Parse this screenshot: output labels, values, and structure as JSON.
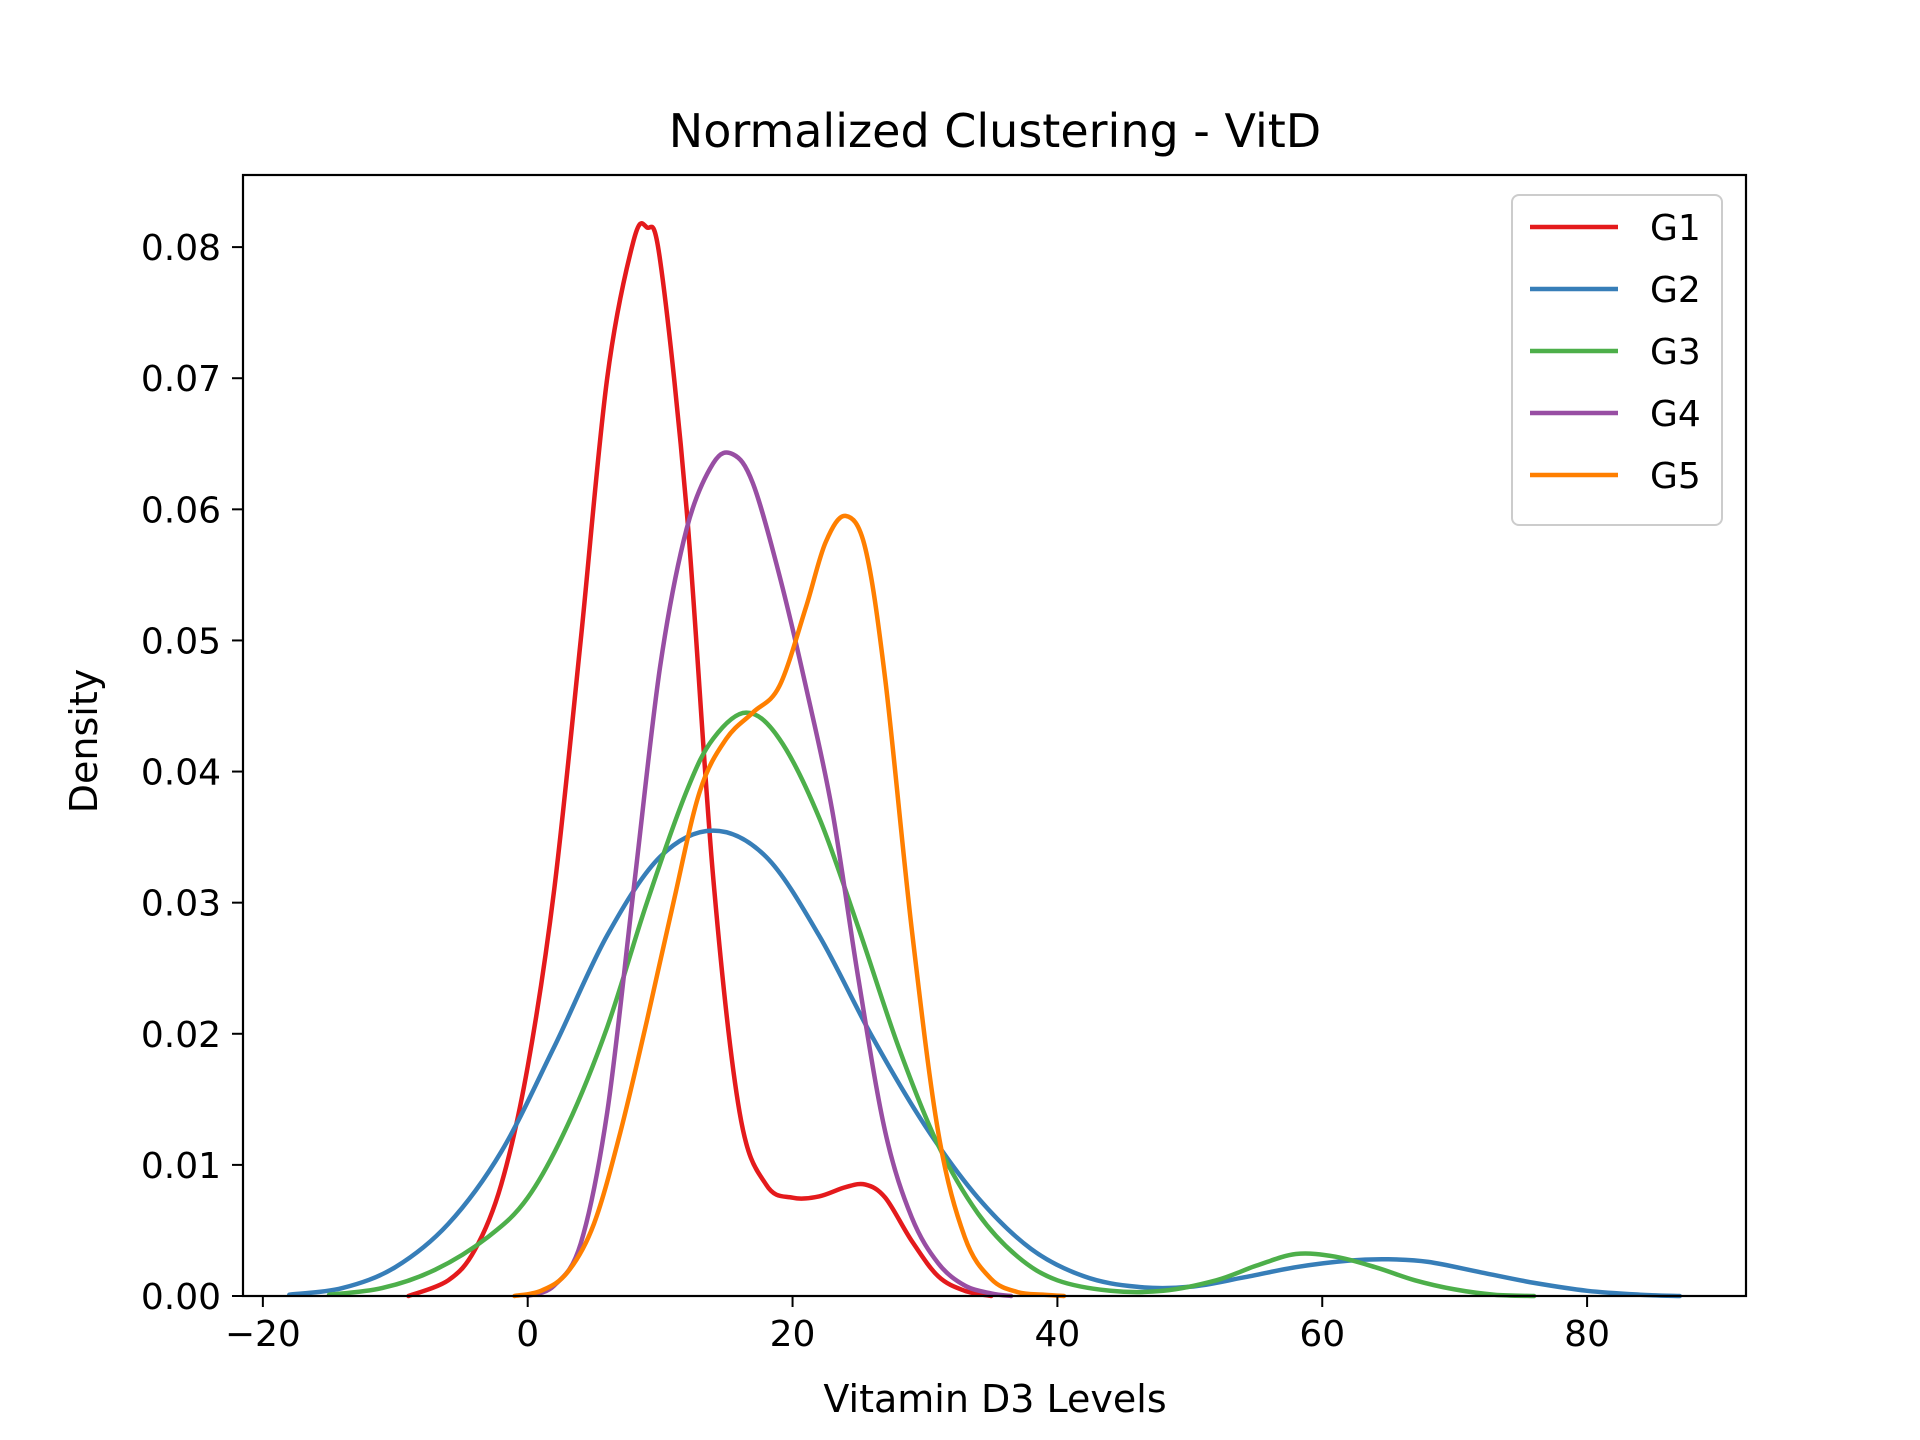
{
  "chart_data": {
    "type": "line",
    "title": "Normalized Clustering - VitD",
    "xlabel": "Vitamin D3 Levels",
    "ylabel": "Density",
    "xlim": [
      -21.5,
      92
    ],
    "ylim": [
      0,
      0.0855
    ],
    "xticks": [
      -20,
      0,
      20,
      40,
      60,
      80
    ],
    "xtick_labels": [
      "−20",
      "0",
      "20",
      "40",
      "60",
      "80"
    ],
    "yticks": [
      0,
      0.01,
      0.02,
      0.03,
      0.04,
      0.05,
      0.06,
      0.07,
      0.08
    ],
    "ytick_labels": [
      "0.00",
      "0.01",
      "0.02",
      "0.03",
      "0.04",
      "0.05",
      "0.06",
      "0.07",
      "0.08"
    ],
    "grid": false,
    "legend_position": "top-right",
    "series": [
      {
        "name": "G1",
        "color": "#e41a1c",
        "x": [
          -9,
          -6,
          -4,
          -2,
          0,
          2,
          4,
          6,
          8,
          9,
          10,
          12,
          14,
          16,
          18,
          20,
          22,
          24,
          25.5,
          27,
          29,
          31,
          33,
          35
        ],
        "y": [
          0.0,
          0.0012,
          0.0035,
          0.0085,
          0.0175,
          0.031,
          0.05,
          0.07,
          0.0805,
          0.0815,
          0.079,
          0.06,
          0.032,
          0.014,
          0.0085,
          0.0075,
          0.0076,
          0.0083,
          0.0085,
          0.0075,
          0.0042,
          0.0015,
          0.0004,
          0.0
        ]
      },
      {
        "name": "G2",
        "color": "#377eb8",
        "x": [
          -18,
          -14,
          -10,
          -6,
          -2,
          2,
          6,
          10,
          14,
          18,
          22,
          26,
          30,
          34,
          38,
          42,
          46,
          50,
          54,
          58,
          62,
          65,
          68,
          72,
          76,
          80,
          84,
          87
        ],
        "y": [
          0.0001,
          0.0006,
          0.0022,
          0.0055,
          0.011,
          0.019,
          0.0275,
          0.0335,
          0.0355,
          0.0335,
          0.0275,
          0.0198,
          0.013,
          0.0075,
          0.0036,
          0.0015,
          0.0007,
          0.0007,
          0.0014,
          0.0022,
          0.0027,
          0.0028,
          0.0026,
          0.0018,
          0.001,
          0.0004,
          0.0001,
          0.0
        ]
      },
      {
        "name": "G3",
        "color": "#4daf4a",
        "x": [
          -15,
          -11,
          -7,
          -3,
          0,
          3,
          6,
          9,
          12,
          14,
          16.5,
          19,
          22,
          25,
          28,
          31,
          34,
          37,
          40,
          44,
          48,
          52,
          55,
          58,
          61,
          64,
          67,
          70,
          73,
          76
        ],
        "y": [
          0.0001,
          0.0006,
          0.002,
          0.0045,
          0.0075,
          0.013,
          0.0205,
          0.03,
          0.0385,
          0.0425,
          0.0445,
          0.0425,
          0.0365,
          0.028,
          0.019,
          0.0115,
          0.0063,
          0.003,
          0.0012,
          0.0004,
          0.0004,
          0.0012,
          0.0023,
          0.0032,
          0.003,
          0.0022,
          0.0012,
          0.0005,
          0.0001,
          0.0
        ]
      },
      {
        "name": "G4",
        "color": "#984ea3",
        "x": [
          0,
          2,
          4,
          6,
          8,
          10,
          12,
          14,
          15.5,
          17,
          19,
          21,
          23,
          25,
          27,
          29,
          31,
          33,
          35,
          36.5
        ],
        "y": [
          0.0,
          0.0008,
          0.004,
          0.014,
          0.031,
          0.048,
          0.0585,
          0.0635,
          0.0642,
          0.062,
          0.055,
          0.0465,
          0.037,
          0.024,
          0.0125,
          0.006,
          0.0025,
          0.0008,
          0.0002,
          0.0
        ]
      },
      {
        "name": "G5",
        "color": "#ff7f00",
        "x": [
          -1,
          1,
          3,
          5,
          7,
          9,
          11,
          13,
          15,
          17,
          19,
          21,
          22.5,
          24,
          25.5,
          27,
          29,
          31,
          33,
          35,
          37,
          39,
          40.5
        ],
        "y": [
          0.0,
          0.0004,
          0.0018,
          0.0055,
          0.0125,
          0.021,
          0.03,
          0.0385,
          0.0425,
          0.0445,
          0.0465,
          0.0525,
          0.0575,
          0.0595,
          0.057,
          0.047,
          0.028,
          0.0125,
          0.0045,
          0.0013,
          0.0003,
          0.0001,
          0.0
        ]
      }
    ]
  }
}
